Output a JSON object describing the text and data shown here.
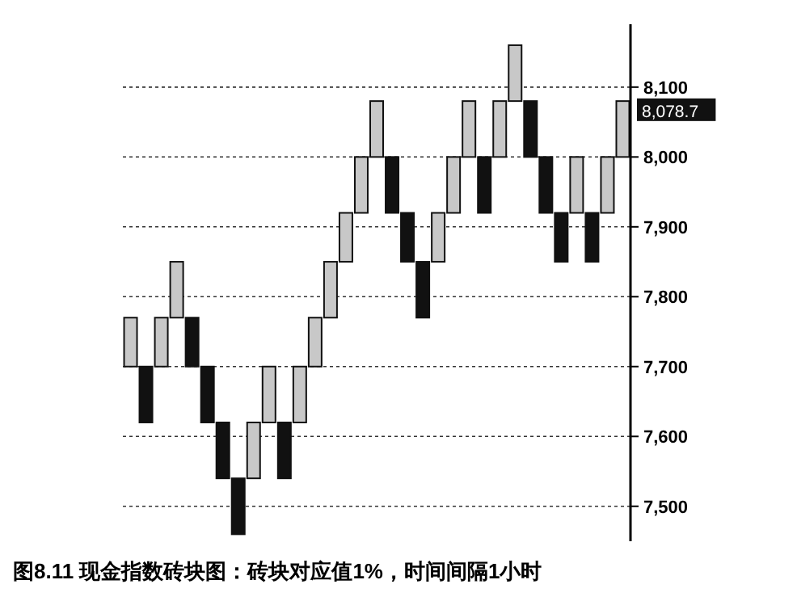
{
  "chart_data": {
    "type": "bar",
    "title": "图8.11 现金指数砖块图：砖块对应值1%，时间间隔1小时",
    "categories": [
      null,
      null,
      null,
      null,
      null,
      null,
      null,
      null,
      null,
      null,
      null,
      null,
      null,
      null,
      null,
      null,
      null,
      null,
      null,
      null,
      null,
      null,
      null,
      null,
      null,
      null,
      null,
      null,
      null,
      null,
      null,
      null,
      null
    ],
    "base": [
      7700,
      7620,
      7700,
      7770,
      7700,
      7620,
      7540,
      7460,
      7540,
      7620,
      7540,
      7620,
      7700,
      7770,
      7850,
      7920,
      8000,
      7920,
      7850,
      7770,
      7850,
      7920,
      8000,
      7920,
      8000,
      8080,
      8000,
      7920,
      7850,
      7920,
      7850,
      7920,
      8000
    ],
    "values": [
      70,
      80,
      70,
      80,
      70,
      80,
      80,
      80,
      80,
      80,
      80,
      80,
      70,
      80,
      70,
      80,
      80,
      80,
      70,
      80,
      70,
      80,
      80,
      80,
      80,
      80,
      80,
      80,
      70,
      80,
      70,
      80,
      80
    ],
    "colors": [
      "#c8c8c8",
      "#111111",
      "#c8c8c8",
      "#c8c8c8",
      "#111111",
      "#111111",
      "#111111",
      "#111111",
      "#c8c8c8",
      "#c8c8c8",
      "#111111",
      "#c8c8c8",
      "#c8c8c8",
      "#c8c8c8",
      "#c8c8c8",
      "#c8c8c8",
      "#c8c8c8",
      "#111111",
      "#111111",
      "#111111",
      "#c8c8c8",
      "#c8c8c8",
      "#c8c8c8",
      "#111111",
      "#c8c8c8",
      "#c8c8c8",
      "#111111",
      "#111111",
      "#111111",
      "#c8c8c8",
      "#111111",
      "#c8c8c8",
      "#c8c8c8"
    ],
    "ylim": [
      7450,
      8190
    ],
    "yticks": [
      {
        "value": 7500,
        "label": "7,500"
      },
      {
        "value": 7600,
        "label": "7,600"
      },
      {
        "value": 7700,
        "label": "7,700"
      },
      {
        "value": 7800,
        "label": "7,800"
      },
      {
        "value": 7900,
        "label": "7,900"
      },
      {
        "value": 8000,
        "label": "8,000"
      },
      {
        "value": 8100,
        "label": "8,100"
      }
    ],
    "annotations": [
      "8,078.7"
    ],
    "grid": "y"
  }
}
